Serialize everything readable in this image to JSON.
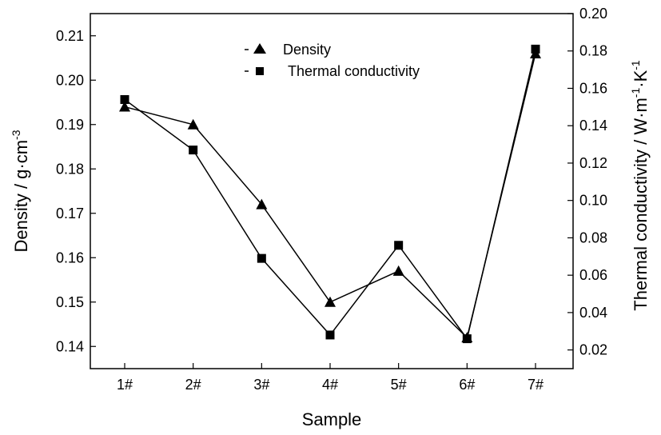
{
  "chart_data": {
    "type": "line",
    "categories": [
      "1#",
      "2#",
      "3#",
      "4#",
      "5#",
      "6#",
      "7#"
    ],
    "xlabel": "Sample",
    "ylabel_left": "Density / g·cm",
    "ylabel_left_sup": "-3",
    "ylabel_right": {
      "prefix": "Thermal conductivity / W·m",
      "sup1": "-1",
      "mid": "·K",
      "sup2": "-1"
    },
    "y_left": {
      "ylim": [
        0.135,
        0.215
      ],
      "ticks": [
        0.14,
        0.15,
        0.16,
        0.17,
        0.18,
        0.19,
        0.2,
        0.21
      ],
      "tick_labels": [
        "0.14",
        "0.15",
        "0.16",
        "0.17",
        "0.18",
        "0.19",
        "0.20",
        "0.21"
      ]
    },
    "y_right": {
      "ylim": [
        0.01,
        0.2
      ],
      "ticks": [
        0.02,
        0.04,
        0.06,
        0.08,
        0.1,
        0.12,
        0.14,
        0.16,
        0.18,
        0.2
      ],
      "tick_labels": [
        "0.02",
        "0.04",
        "0.06",
        "0.08",
        "0.10",
        "0.12",
        "0.14",
        "0.16",
        "0.18",
        "0.20"
      ]
    },
    "series": [
      {
        "name": "Density",
        "axis": "left",
        "marker": "triangle",
        "values": [
          0.194,
          0.19,
          0.172,
          0.15,
          0.157,
          0.142,
          0.206
        ]
      },
      {
        "name": "Thermal conductivity",
        "axis": "right",
        "marker": "square",
        "values": [
          0.154,
          0.127,
          0.069,
          0.028,
          0.076,
          0.026,
          0.181
        ]
      }
    ],
    "legend_position": "top-center",
    "grid": false,
    "color": "#000000"
  }
}
